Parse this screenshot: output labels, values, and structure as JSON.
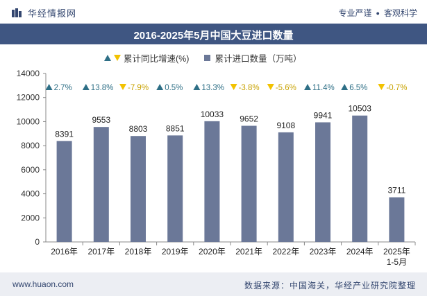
{
  "header": {
    "brand": "华经情报网",
    "slogan_left": "专业严谨",
    "slogan_right": "客观科学"
  },
  "footer": {
    "website": "www.huaon.com",
    "source": "数据来源：中国海关，华经产业研究院整理"
  },
  "colors": {
    "bar": "#6b7898",
    "title_bg": "#3f5682",
    "up": "#2e6f86",
    "down": "#f2c200"
  },
  "chart_data": {
    "type": "bar",
    "title": "2016-2025年5月中国大豆进口数量",
    "legend": {
      "growth_label": "累计同比增速(%)",
      "volume_label": "累计进口数量（万吨）"
    },
    "categories": [
      "2016年",
      "2017年",
      "2018年",
      "2019年",
      "2020年",
      "2021年",
      "2022年",
      "2023年",
      "2024年",
      "2025年\n1-5月"
    ],
    "series": [
      {
        "name": "累计进口数量（万吨）",
        "values": [
          8391,
          9553,
          8803,
          8851,
          10033,
          9652,
          9108,
          9941,
          10503,
          3711
        ]
      }
    ],
    "growth": {
      "name": "累计同比增速(%)",
      "values": [
        2.7,
        13.8,
        -7.9,
        0.5,
        13.3,
        -3.8,
        -5.6,
        11.4,
        6.5,
        -0.7
      ],
      "labels": [
        "2.7%",
        "13.8%",
        "-7.9%",
        "0.5%",
        "13.3%",
        "-3.8%",
        "-5.6%",
        "11.4%",
        "6.5%",
        "-0.7%"
      ]
    },
    "ylim": [
      0,
      14000
    ],
    "yticks": [
      0,
      2000,
      4000,
      6000,
      8000,
      10000,
      12000,
      14000
    ],
    "grid": false,
    "legend_placement": "top"
  }
}
